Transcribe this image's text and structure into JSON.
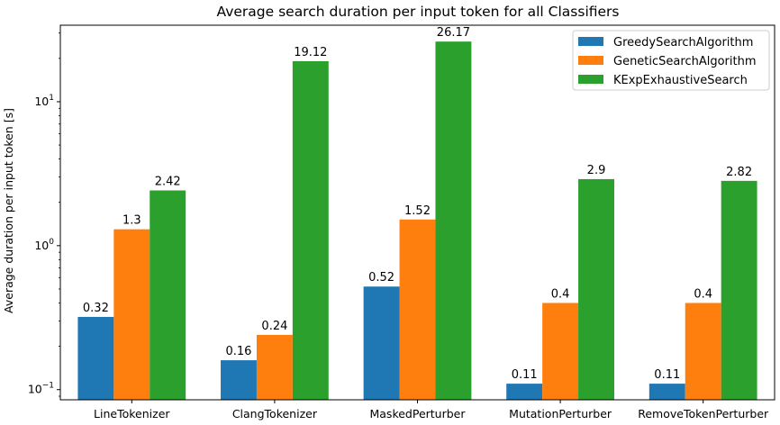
{
  "chart_data": {
    "type": "bar",
    "title": "Average search duration per input token for all Classifiers",
    "xlabel": "",
    "ylabel": "Average duration per input token [s]",
    "yscale": "log",
    "ylim": [
      0.085,
      34
    ],
    "yticks": [
      {
        "value": 0.1,
        "base": "10",
        "exp": "−1"
      },
      {
        "value": 1,
        "base": "10",
        "exp": "0"
      },
      {
        "value": 10,
        "base": "10",
        "exp": "1"
      }
    ],
    "categories": [
      "LineTokenizer",
      "ClangTokenizer",
      "MaskedPerturber",
      "MutationPerturber",
      "RemoveTokenPerturber"
    ],
    "series": [
      {
        "name": "GreedySearchAlgorithm",
        "color": "#1f77b4",
        "values": [
          0.32,
          0.16,
          0.52,
          0.11,
          0.11
        ],
        "labels": [
          "0.32",
          "0.16",
          "0.52",
          "0.11",
          "0.11"
        ]
      },
      {
        "name": "GeneticSearchAlgorithm",
        "color": "#ff7f0e",
        "values": [
          1.3,
          0.24,
          1.52,
          0.4,
          0.4
        ],
        "labels": [
          "1.3",
          "0.24",
          "1.52",
          "0.4",
          "0.4"
        ]
      },
      {
        "name": "KExpExhaustiveSearch",
        "color": "#2ca02c",
        "values": [
          2.42,
          19.12,
          26.17,
          2.9,
          2.82
        ],
        "labels": [
          "2.42",
          "19.12",
          "26.17",
          "2.9",
          "2.82"
        ]
      }
    ],
    "grid": false,
    "legend_position": "top-right"
  }
}
